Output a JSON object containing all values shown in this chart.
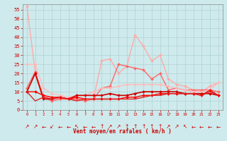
{
  "xlabel": "Vent moyen/en rafales ( km/h )",
  "background_color": "#ceeaec",
  "grid_color": "#aacccc",
  "x": [
    0,
    1,
    2,
    3,
    4,
    5,
    6,
    7,
    8,
    9,
    10,
    11,
    12,
    13,
    14,
    15,
    16,
    17,
    18,
    19,
    20,
    21,
    22,
    23
  ],
  "lines": [
    {
      "y": [
        57,
        21,
        7,
        7,
        6,
        6,
        6,
        6,
        6,
        27,
        28,
        20,
        24,
        41,
        35,
        27,
        30,
        17,
        14,
        13,
        11,
        10,
        13,
        15
      ],
      "color": "#ffaaaa",
      "lw": 1.0,
      "marker": "D",
      "ms": 2.0
    },
    {
      "y": [
        12,
        21,
        7,
        5,
        6,
        6,
        6,
        5,
        6,
        12,
        13,
        25,
        24,
        23,
        22,
        17,
        20,
        11,
        12,
        11,
        11,
        11,
        11,
        10
      ],
      "color": "#ff6666",
      "lw": 1.0,
      "marker": "D",
      "ms": 2.0
    },
    {
      "y": [
        25,
        25,
        12,
        9,
        8,
        7,
        8,
        8,
        10,
        12,
        12,
        13,
        14,
        14,
        14,
        14,
        14,
        13,
        12,
        11,
        10,
        10,
        11,
        15
      ],
      "color": "#ffbbbb",
      "lw": 1.0,
      "marker": "D",
      "ms": 2.0
    },
    {
      "y": [
        10,
        20,
        6,
        6,
        7,
        6,
        8,
        8,
        8,
        8,
        9,
        8,
        8,
        9,
        10,
        10,
        10,
        10,
        10,
        9,
        9,
        9,
        9,
        8
      ],
      "color": "#cc0000",
      "lw": 1.2,
      "marker": "D",
      "ms": 2.0
    },
    {
      "y": [
        10,
        10,
        8,
        7,
        7,
        6,
        7,
        6,
        6,
        6,
        6,
        6,
        7,
        7,
        8,
        8,
        9,
        9,
        9,
        9,
        9,
        8,
        11,
        8
      ],
      "color": "#ff0000",
      "lw": 1.0,
      "marker": "D",
      "ms": 2.0
    },
    {
      "y": [
        10,
        5,
        7,
        6,
        7,
        6,
        5,
        6,
        6,
        6,
        6,
        6,
        6,
        6,
        7,
        8,
        8,
        9,
        9,
        9,
        9,
        8,
        10,
        8
      ],
      "color": "#dd2222",
      "lw": 1.0,
      "marker": null,
      "ms": 0
    }
  ],
  "wind_arrows": [
    "↗",
    "↗",
    "←",
    "↙",
    "←",
    "←",
    "↖",
    "←",
    "←",
    "↑",
    "↗",
    "↗",
    "↑",
    "↑",
    "↑",
    "↑",
    "↑",
    "↗",
    "↗",
    "↖",
    "←",
    "←",
    "←",
    "←"
  ],
  "yticks": [
    0,
    5,
    10,
    15,
    20,
    25,
    30,
    35,
    40,
    45,
    50,
    55
  ],
  "xlim": [
    -0.5,
    23.5
  ],
  "ylim": [
    0,
    58
  ]
}
